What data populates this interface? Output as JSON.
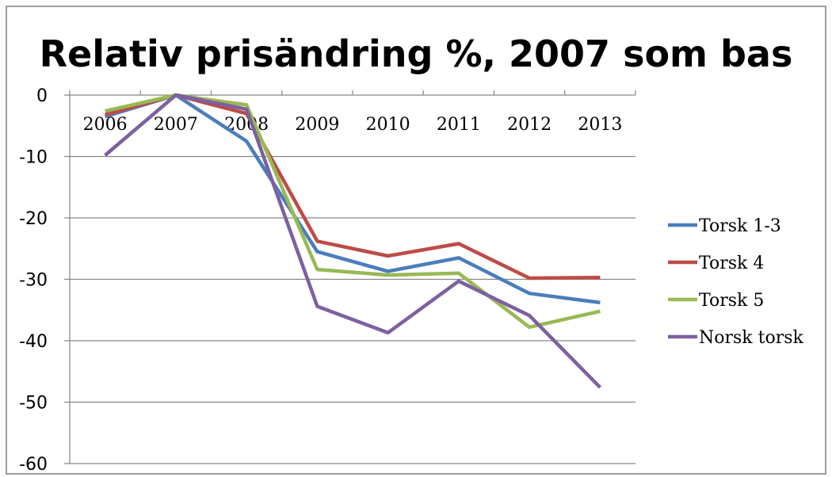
{
  "chart_data": {
    "type": "line",
    "title": "Relativ prisändring %, 2007 som bas",
    "xlabel": "",
    "ylabel": "",
    "categories": [
      "2006",
      "2007",
      "2008",
      "2009",
      "2010",
      "2011",
      "2012",
      "2013"
    ],
    "ylim": [
      -60,
      0
    ],
    "yticks": [
      0,
      -10,
      -20,
      -30,
      -40,
      -50,
      -60
    ],
    "grid": true,
    "legend_position": "right",
    "series": [
      {
        "name": "Torsk 1-3",
        "color": "#4a7ebb",
        "values": [
          -3.5,
          0,
          -7.5,
          -25.5,
          -28.7,
          -26.5,
          -32.3,
          -33.8
        ]
      },
      {
        "name": "Torsk 4",
        "color": "#be4b48",
        "values": [
          -3.2,
          0,
          -3.0,
          -23.8,
          -26.2,
          -24.2,
          -29.8,
          -29.7
        ]
      },
      {
        "name": "Torsk 5",
        "color": "#98b954",
        "values": [
          -2.6,
          0,
          -1.6,
          -28.4,
          -29.3,
          -29.0,
          -37.8,
          -35.2
        ]
      },
      {
        "name": "Norsk torsk",
        "color": "#7d60a0",
        "values": [
          -9.8,
          0,
          -2.3,
          -34.4,
          -38.7,
          -30.3,
          -35.9,
          -47.6
        ]
      }
    ]
  }
}
